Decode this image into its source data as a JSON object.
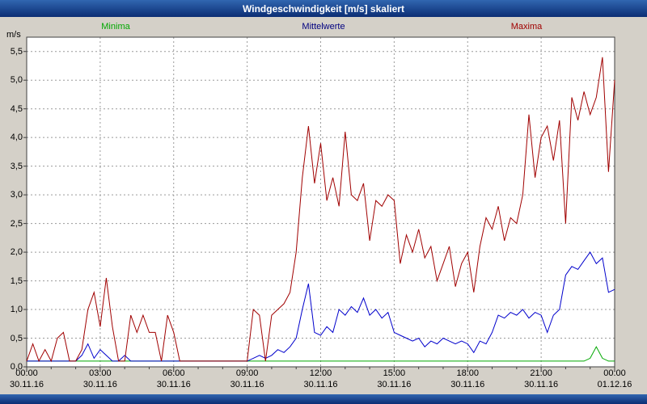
{
  "window": {
    "title": "Windgeschwindigkeit [m/s] skaliert"
  },
  "legend": {
    "items": [
      {
        "label": "Minima",
        "color": "#00a800"
      },
      {
        "label": "Mittelwerte",
        "color": "#000080"
      },
      {
        "label": "Maxima",
        "color": "#a00000"
      }
    ]
  },
  "chart_data": {
    "type": "line",
    "title": "Windgeschwindigkeit [m/s] skaliert",
    "y_unit": "m/s",
    "y_min": 0,
    "y_max": 5.75,
    "y_step": 0.5,
    "y_ticks": [
      "0,0",
      "0,5",
      "1,0",
      "1,5",
      "2,0",
      "2,5",
      "3,0",
      "3,5",
      "4,0",
      "4,5",
      "5,0",
      "5,5"
    ],
    "x_hours_total": 24,
    "sample_interval_minutes": 15,
    "grid": {
      "dashed": true,
      "color": "#9a9a9a"
    },
    "x_ticks": [
      {
        "time": "00:00",
        "date": "30.11.16"
      },
      {
        "time": "03:00",
        "date": "30.11.16"
      },
      {
        "time": "06:00",
        "date": "30.11.16"
      },
      {
        "time": "09:00",
        "date": "30.11.16"
      },
      {
        "time": "12:00",
        "date": "30.11.16"
      },
      {
        "time": "15:00",
        "date": "30.11.16"
      },
      {
        "time": "18:00",
        "date": "30.11.16"
      },
      {
        "time": "21:00",
        "date": "30.11.16"
      },
      {
        "time": "00:00",
        "date": "01.12.16"
      }
    ],
    "series": [
      {
        "name": "Minima",
        "color": "#00a800",
        "values": [
          0.1,
          0.1,
          0.1,
          0.1,
          0.1,
          0.1,
          0.1,
          0.1,
          0.1,
          0.1,
          0.1,
          0.1,
          0.1,
          0.1,
          0.1,
          0.1,
          0.1,
          0.1,
          0.1,
          0.1,
          0.1,
          0.1,
          0.1,
          0.1,
          0.1,
          0.1,
          0.1,
          0.1,
          0.1,
          0.1,
          0.1,
          0.1,
          0.1,
          0.1,
          0.1,
          0.1,
          0.1,
          0.1,
          0.1,
          0.1,
          0.1,
          0.1,
          0.1,
          0.1,
          0.1,
          0.1,
          0.1,
          0.1,
          0.1,
          0.1,
          0.1,
          0.1,
          0.1,
          0.1,
          0.1,
          0.1,
          0.1,
          0.1,
          0.1,
          0.1,
          0.1,
          0.1,
          0.1,
          0.1,
          0.1,
          0.1,
          0.1,
          0.1,
          0.1,
          0.1,
          0.1,
          0.1,
          0.1,
          0.1,
          0.1,
          0.1,
          0.1,
          0.1,
          0.1,
          0.1,
          0.1,
          0.1,
          0.1,
          0.1,
          0.1,
          0.1,
          0.1,
          0.1,
          0.1,
          0.1,
          0.1,
          0.1,
          0.15,
          0.35,
          0.15,
          0.1,
          0.1
        ]
      },
      {
        "name": "Mittelwerte",
        "color": "#0000cc",
        "values": [
          0.1,
          0.1,
          0.1,
          0.1,
          0.1,
          0.1,
          0.1,
          0.1,
          0.1,
          0.2,
          0.4,
          0.15,
          0.3,
          0.2,
          0.1,
          0.1,
          0.2,
          0.1,
          0.1,
          0.1,
          0.1,
          0.1,
          0.1,
          0.1,
          0.1,
          0.1,
          0.1,
          0.1,
          0.1,
          0.1,
          0.1,
          0.1,
          0.1,
          0.1,
          0.1,
          0.1,
          0.1,
          0.15,
          0.2,
          0.15,
          0.2,
          0.3,
          0.25,
          0.35,
          0.5,
          1.0,
          1.45,
          0.6,
          0.55,
          0.7,
          0.6,
          1.0,
          0.9,
          1.05,
          0.95,
          1.2,
          0.9,
          1.0,
          0.85,
          0.95,
          0.6,
          0.55,
          0.5,
          0.45,
          0.5,
          0.35,
          0.45,
          0.4,
          0.5,
          0.45,
          0.4,
          0.45,
          0.4,
          0.25,
          0.45,
          0.4,
          0.6,
          0.9,
          0.85,
          0.95,
          0.9,
          1.0,
          0.85,
          0.95,
          0.9,
          0.6,
          0.9,
          1.0,
          1.6,
          1.75,
          1.7,
          1.85,
          2.0,
          1.8,
          1.9,
          1.3,
          1.35
        ]
      },
      {
        "name": "Maxima",
        "color": "#a00000",
        "values": [
          0.1,
          0.4,
          0.1,
          0.3,
          0.1,
          0.5,
          0.6,
          0.1,
          0.1,
          0.3,
          1.0,
          1.3,
          0.7,
          1.55,
          0.7,
          0.1,
          0.1,
          0.9,
          0.6,
          0.9,
          0.6,
          0.6,
          0.1,
          0.9,
          0.6,
          0.1,
          0.1,
          0.1,
          0.1,
          0.1,
          0.1,
          0.1,
          0.1,
          0.1,
          0.1,
          0.1,
          0.1,
          1.0,
          0.9,
          0.1,
          0.9,
          1.0,
          1.1,
          1.3,
          2.0,
          3.3,
          4.2,
          3.2,
          3.9,
          2.9,
          3.3,
          2.8,
          4.1,
          3.0,
          2.9,
          3.2,
          2.2,
          2.9,
          2.8,
          3.0,
          2.9,
          1.8,
          2.3,
          2.0,
          2.4,
          1.9,
          2.1,
          1.5,
          1.8,
          2.1,
          1.4,
          1.8,
          2.0,
          1.3,
          2.1,
          2.6,
          2.4,
          2.8,
          2.2,
          2.6,
          2.5,
          3.0,
          4.4,
          3.3,
          4.0,
          4.2,
          3.6,
          4.3,
          2.5,
          4.7,
          4.3,
          4.8,
          4.4,
          4.7,
          5.4,
          3.4,
          5.0
        ]
      }
    ]
  }
}
